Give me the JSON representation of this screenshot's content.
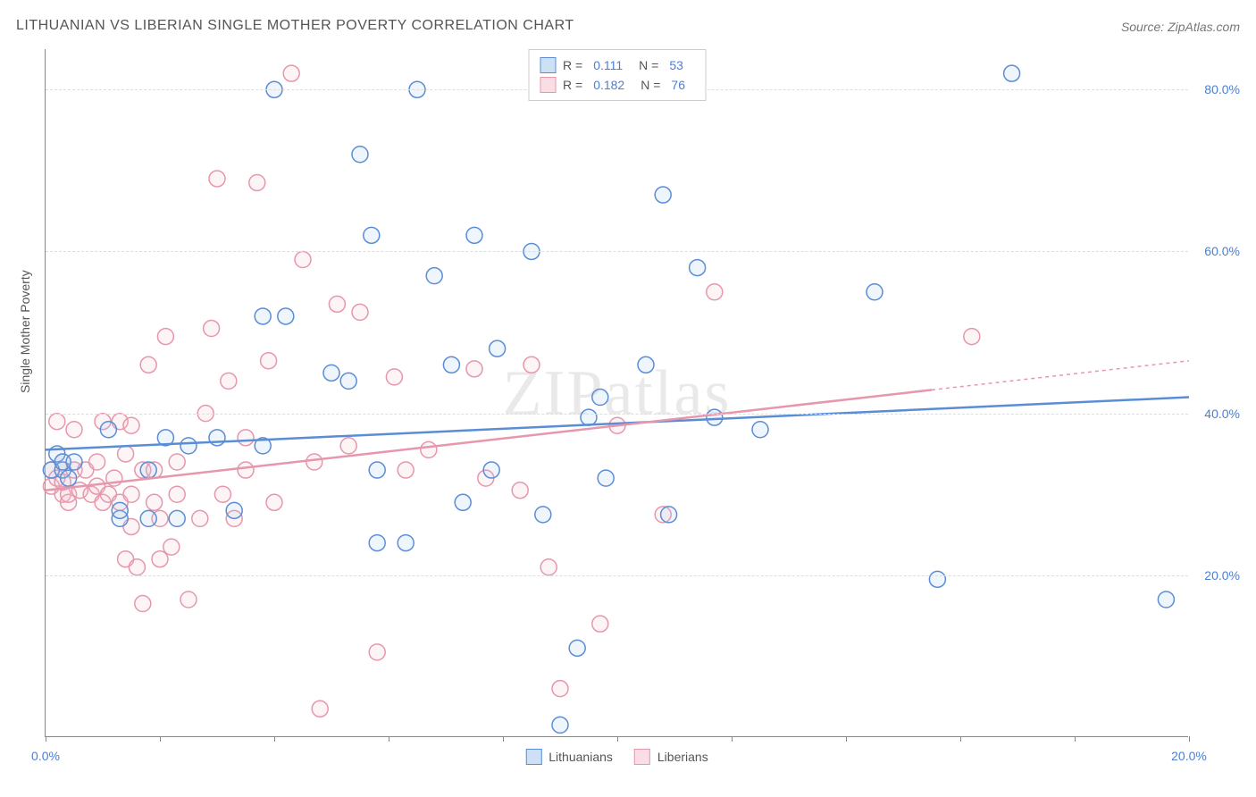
{
  "title": "LITHUANIAN VS LIBERIAN SINGLE MOTHER POVERTY CORRELATION CHART",
  "source": "Source: ZipAtlas.com",
  "y_axis_title": "Single Mother Poverty",
  "watermark": "ZIPatlas",
  "chart": {
    "type": "scatter",
    "xlim": [
      0,
      20
    ],
    "ylim": [
      0,
      85
    ],
    "x_ticks": [
      0,
      2,
      4,
      6,
      8,
      10,
      12,
      14,
      16,
      18,
      20
    ],
    "x_tick_labels": {
      "0": "0.0%",
      "20": "20.0%"
    },
    "y_gridlines": [
      20,
      40,
      60,
      80
    ],
    "y_tick_labels": {
      "20": "20.0%",
      "40": "40.0%",
      "60": "60.0%",
      "80": "80.0%"
    },
    "background_color": "#ffffff",
    "grid_color": "#dddddd",
    "axis_color": "#888888",
    "label_color": "#4a7fd8",
    "marker_radius": 9,
    "marker_stroke_width": 1.5,
    "marker_fill_opacity": 0.18,
    "trend_line_width": 2.5,
    "series": [
      {
        "id": "lithuanians",
        "label": "Lithuanians",
        "color": "#5b8dd6",
        "fill": "#a7c5ed",
        "r_value": "0.111",
        "n_value": "53",
        "trend": {
          "x1": 0,
          "y1": 35.5,
          "x2": 20,
          "y2": 42,
          "dashed_from_x": null
        },
        "points": [
          [
            0.1,
            33
          ],
          [
            0.2,
            35
          ],
          [
            0.3,
            33
          ],
          [
            0.3,
            34
          ],
          [
            0.4,
            32
          ],
          [
            0.5,
            34
          ],
          [
            1.1,
            38
          ],
          [
            1.3,
            27
          ],
          [
            1.3,
            28
          ],
          [
            1.8,
            27
          ],
          [
            1.8,
            33
          ],
          [
            2.1,
            37
          ],
          [
            2.3,
            27
          ],
          [
            2.5,
            36
          ],
          [
            3.0,
            37
          ],
          [
            3.3,
            28
          ],
          [
            3.8,
            52
          ],
          [
            3.8,
            36
          ],
          [
            4.0,
            80
          ],
          [
            4.2,
            52
          ],
          [
            5.0,
            45
          ],
          [
            5.3,
            44
          ],
          [
            5.5,
            72
          ],
          [
            5.7,
            62
          ],
          [
            5.8,
            24
          ],
          [
            5.8,
            33
          ],
          [
            6.3,
            24
          ],
          [
            6.5,
            80
          ],
          [
            6.8,
            57
          ],
          [
            7.1,
            46
          ],
          [
            7.3,
            29
          ],
          [
            7.5,
            62
          ],
          [
            7.8,
            33
          ],
          [
            7.9,
            48
          ],
          [
            8.5,
            60
          ],
          [
            8.7,
            27.5
          ],
          [
            9.0,
            1.5
          ],
          [
            9.3,
            11
          ],
          [
            9.5,
            39.5
          ],
          [
            9.7,
            42
          ],
          [
            9.8,
            32
          ],
          [
            10.5,
            46
          ],
          [
            10.8,
            67
          ],
          [
            10.9,
            27.5
          ],
          [
            11.4,
            58
          ],
          [
            11.7,
            39.5
          ],
          [
            12.5,
            38
          ],
          [
            14.5,
            55
          ],
          [
            15.6,
            19.5
          ],
          [
            16.9,
            82
          ],
          [
            19.6,
            17
          ]
        ]
      },
      {
        "id": "liberians",
        "label": "Liberians",
        "color": "#e697ab",
        "fill": "#f5c2cf",
        "r_value": "0.182",
        "n_value": "76",
        "trend": {
          "x1": 0,
          "y1": 30.5,
          "x2": 20,
          "y2": 46.5,
          "dashed_from_x": 15.5
        },
        "points": [
          [
            0.1,
            31
          ],
          [
            0.1,
            33
          ],
          [
            0.2,
            39
          ],
          [
            0.2,
            32
          ],
          [
            0.3,
            30
          ],
          [
            0.3,
            34
          ],
          [
            0.3,
            31.5
          ],
          [
            0.4,
            29
          ],
          [
            0.4,
            30
          ],
          [
            0.5,
            38
          ],
          [
            0.5,
            33
          ],
          [
            0.6,
            30.5
          ],
          [
            0.7,
            33
          ],
          [
            0.8,
            30
          ],
          [
            0.9,
            31
          ],
          [
            0.9,
            34
          ],
          [
            1.0,
            29
          ],
          [
            1.0,
            39
          ],
          [
            1.1,
            30
          ],
          [
            1.2,
            32
          ],
          [
            1.3,
            39
          ],
          [
            1.3,
            29
          ],
          [
            1.4,
            35
          ],
          [
            1.4,
            22
          ],
          [
            1.5,
            26
          ],
          [
            1.5,
            38.5
          ],
          [
            1.5,
            30
          ],
          [
            1.6,
            21
          ],
          [
            1.7,
            33
          ],
          [
            1.7,
            16.5
          ],
          [
            1.8,
            46
          ],
          [
            1.9,
            29
          ],
          [
            1.9,
            33
          ],
          [
            2.0,
            27
          ],
          [
            2.0,
            22
          ],
          [
            2.1,
            49.5
          ],
          [
            2.2,
            23.5
          ],
          [
            2.3,
            30
          ],
          [
            2.3,
            34
          ],
          [
            2.5,
            17
          ],
          [
            2.7,
            27
          ],
          [
            2.8,
            40
          ],
          [
            2.9,
            50.5
          ],
          [
            3.0,
            69
          ],
          [
            3.1,
            30
          ],
          [
            3.2,
            44
          ],
          [
            3.3,
            27
          ],
          [
            3.5,
            37
          ],
          [
            3.5,
            33
          ],
          [
            3.7,
            68.5
          ],
          [
            3.9,
            46.5
          ],
          [
            4.0,
            29
          ],
          [
            4.3,
            82
          ],
          [
            4.5,
            59
          ],
          [
            4.7,
            34
          ],
          [
            4.8,
            3.5
          ],
          [
            5.1,
            53.5
          ],
          [
            5.3,
            36
          ],
          [
            5.5,
            52.5
          ],
          [
            5.8,
            10.5
          ],
          [
            6.1,
            44.5
          ],
          [
            6.3,
            33
          ],
          [
            6.7,
            35.5
          ],
          [
            7.5,
            45.5
          ],
          [
            7.7,
            32
          ],
          [
            8.3,
            30.5
          ],
          [
            8.5,
            46
          ],
          [
            8.8,
            21
          ],
          [
            9.0,
            6
          ],
          [
            9.7,
            14
          ],
          [
            10.0,
            38.5
          ],
          [
            10.8,
            27.5
          ],
          [
            11.7,
            55
          ],
          [
            16.2,
            49.5
          ]
        ]
      }
    ]
  },
  "legend_top": {
    "r_label": "R =",
    "n_label": "N ="
  },
  "legend_bottom": {
    "items": [
      "Lithuanians",
      "Liberians"
    ]
  }
}
